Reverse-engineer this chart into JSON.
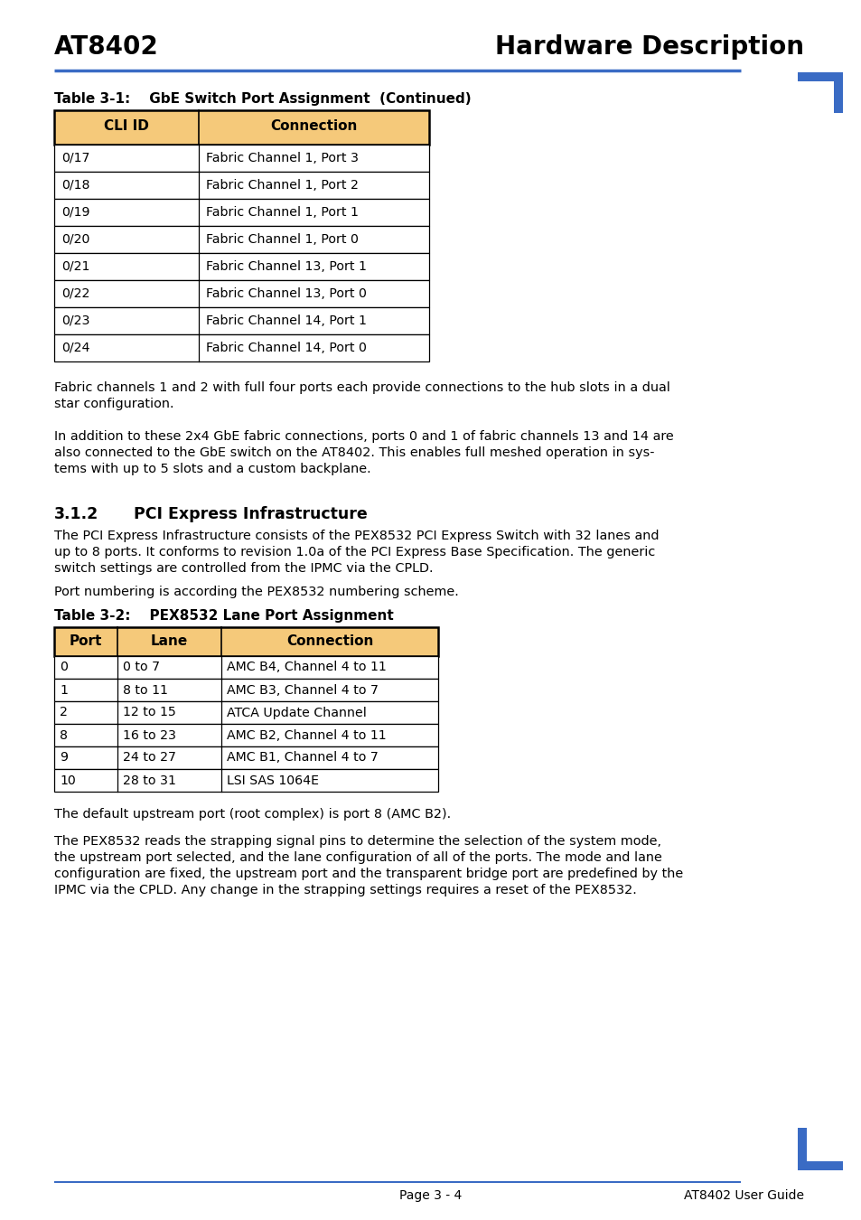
{
  "header_left": "AT8402",
  "header_right": "Hardware Description",
  "header_line_color": "#3a6bc4",
  "corner_mark_color": "#3a6bc4",
  "table1_title": "Table 3-1:    GbE Switch Port Assignment  (Continued)",
  "table1_header": [
    "CLI ID",
    "Connection"
  ],
  "table1_header_bg": "#f5c97a",
  "table1_rows": [
    [
      "0/17",
      "Fabric Channel 1, Port 3"
    ],
    [
      "0/18",
      "Fabric Channel 1, Port 2"
    ],
    [
      "0/19",
      "Fabric Channel 1, Port 1"
    ],
    [
      "0/20",
      "Fabric Channel 1, Port 0"
    ],
    [
      "0/21",
      "Fabric Channel 13, Port 1"
    ],
    [
      "0/22",
      "Fabric Channel 13, Port 0"
    ],
    [
      "0/23",
      "Fabric Channel 14, Port 1"
    ],
    [
      "0/24",
      "Fabric Channel 14, Port 0"
    ]
  ],
  "para1a": "Fabric channels 1 and 2 with full four ports each provide connections to the hub slots in a dual",
  "para1b": "star configuration.",
  "para2a": "In addition to these 2x4 GbE fabric connections, ports 0 and 1 of fabric channels 13 and 14 are",
  "para2b": "also connected to the GbE switch on the AT8402. This enables full meshed operation in sys-",
  "para2c": "tems with up to 5 slots and a custom backplane.",
  "section_num": "3.1.2",
  "section_title": "PCI Express Infrastructure",
  "sec_para1a": "The PCI Express Infrastructure consists of the PEX8532 PCI Express Switch with 32 lanes and",
  "sec_para1b": "up to 8 ports. It conforms to revision 1.0a of the PCI Express Base Specification. The generic",
  "sec_para1c": "switch settings are controlled from the IPMC via the CPLD.",
  "sec_para2": "Port numbering is according the PEX8532 numbering scheme.",
  "table2_title": "Table 3-2:    PEX8532 Lane Port Assignment",
  "table2_header": [
    "Port",
    "Lane",
    "Connection"
  ],
  "table2_header_bg": "#f5c97a",
  "table2_rows": [
    [
      "0",
      "0 to 7",
      "AMC B4, Channel 4 to 11"
    ],
    [
      "1",
      "8 to 11",
      "AMC B3, Channel 4 to 7"
    ],
    [
      "2",
      "12 to 15",
      "ATCA Update Channel"
    ],
    [
      "8",
      "16 to 23",
      "AMC B2, Channel 4 to 11"
    ],
    [
      "9",
      "24 to 27",
      "AMC B1, Channel 4 to 7"
    ],
    [
      "10",
      "28 to 31",
      "LSI SAS 1064E"
    ]
  ],
  "after2a": "The default upstream port (root complex) is port 8 (AMC B2).",
  "after2b": "The PEX8532 reads the strapping signal pins to determine the selection of the system mode,",
  "after2c": "the upstream port selected, and the lane configuration of all of the ports. The mode and lane",
  "after2d": "configuration are fixed, the upstream port and the transparent bridge port are predefined by the",
  "after2e": "IPMC via the CPLD. Any change in the strapping settings requires a reset of the PEX8532.",
  "footer_center": "Page 3 - 4",
  "footer_right": "AT8402 User Guide",
  "footer_line_color": "#3a6bc4",
  "bg_color": "#ffffff"
}
